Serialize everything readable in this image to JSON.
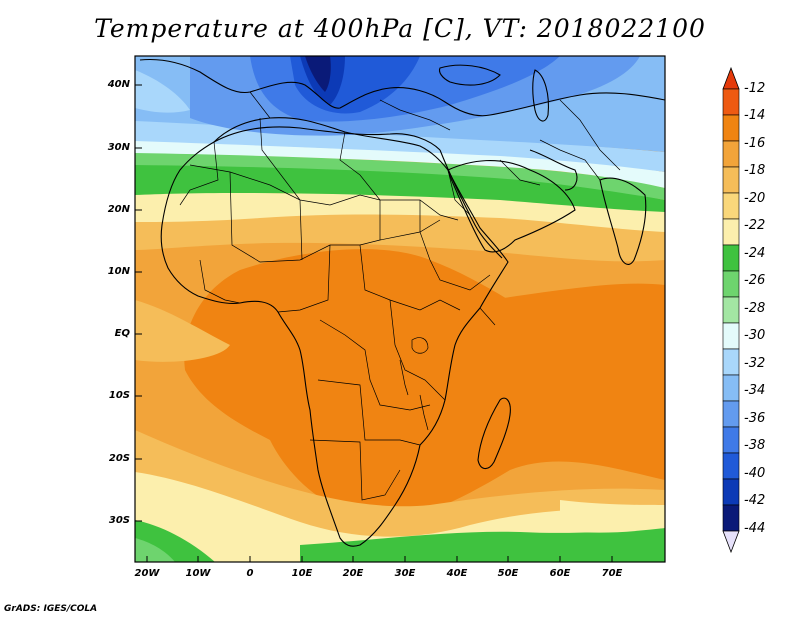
{
  "title": "Temperature at 400hPa [C], VT: 2018022100",
  "credit": "GrADS: IGES/COLA",
  "axes": {
    "lat_labels": [
      "40N",
      "30N",
      "20N",
      "10N",
      "EQ",
      "10S",
      "20S",
      "30S"
    ],
    "lon_labels": [
      "20W",
      "10W",
      "0",
      "10E",
      "20E",
      "30E",
      "40E",
      "50E",
      "60E",
      "70E"
    ]
  },
  "colorbar": {
    "labels": [
      "-12",
      "-14",
      "-16",
      "-18",
      "-20",
      "-22",
      "-24",
      "-26",
      "-28",
      "-30",
      "-32",
      "-34",
      "-36",
      "-38",
      "-40",
      "-42",
      "-44"
    ],
    "colors": [
      "#ee5a12",
      "#f08412",
      "#f2a43a",
      "#f5bd59",
      "#f9d77b",
      "#fcefad",
      "#3fc23f",
      "#6ed46e",
      "#a3e6a3",
      "#e4fbfb",
      "#a9d7fb",
      "#86bdf5",
      "#639bef",
      "#3f7ae8",
      "#205ad8",
      "#0c3ab6",
      "#0a1a78"
    ],
    "top_arrow_color": "#e53a0a",
    "bottom_arrow_color": "#e6e1fa"
  },
  "map_colors": {
    "ocean_warm": "#f2a43a",
    "land_warm": "#f08412",
    "mid": "#f5bd59",
    "light": "#fcefad",
    "green": "#3fc23f",
    "green_light": "#6ed46e",
    "cold": "#3f7ae8",
    "very_cold": "#0a1a78",
    "coast": "#000000"
  }
}
